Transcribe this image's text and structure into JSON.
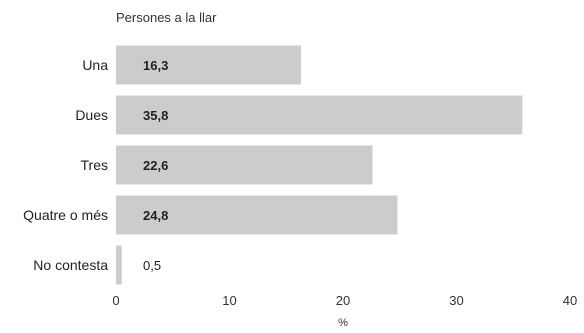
{
  "chart_data": {
    "type": "bar",
    "orientation": "horizontal",
    "title": "Persones a la llar",
    "categories": [
      "Una",
      "Dues",
      "Tres",
      "Quatre o més",
      "No contesta"
    ],
    "values": [
      16.3,
      35.8,
      22.6,
      24.8,
      0.5
    ],
    "value_labels": [
      "16,3",
      "35,8",
      "22,6",
      "24,8",
      "0,5"
    ],
    "xlabel": "%",
    "xlim": [
      0,
      40
    ],
    "xticks": [
      "0",
      "10",
      "20",
      "30",
      "40"
    ],
    "grid": false,
    "bar_color": "#cccccc"
  }
}
